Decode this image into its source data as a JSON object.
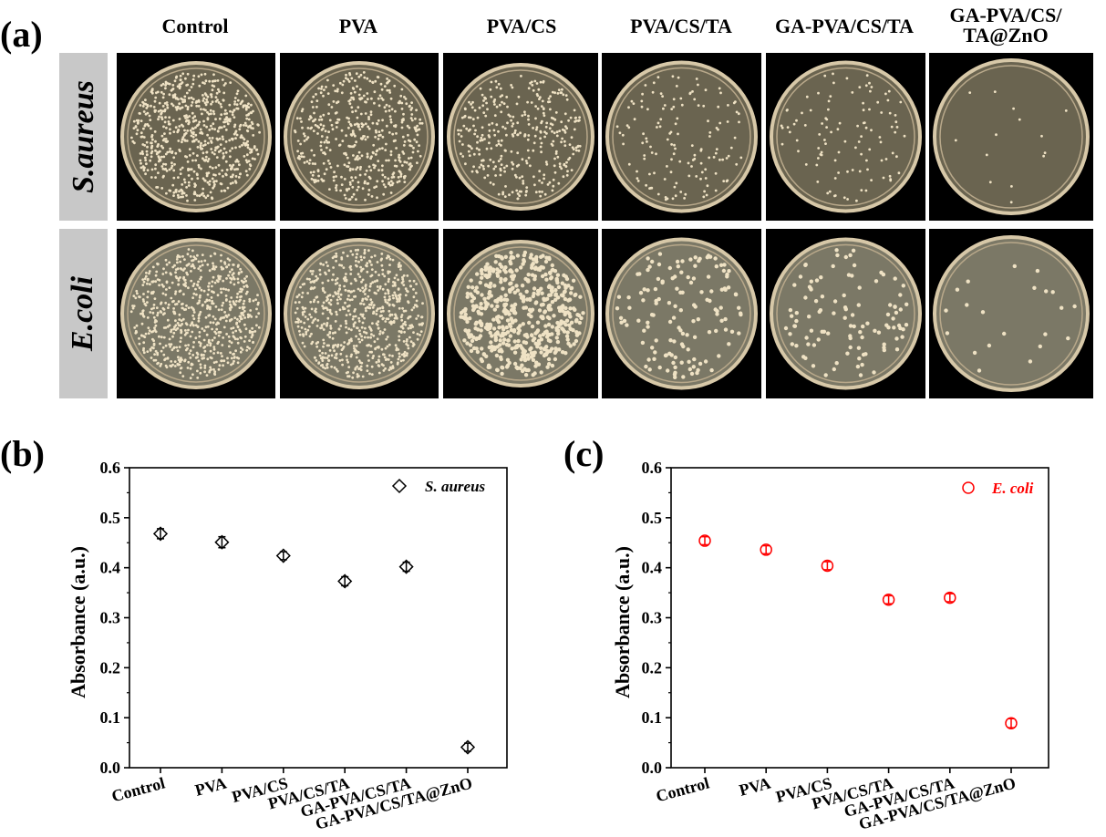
{
  "panel_a": {
    "letter": "(a)",
    "columns": [
      "Control",
      "PVA",
      "PVA/CS",
      "PVA/CS/TA",
      "GA-PVA/CS/TA",
      "GA-PVA/CS/\nTA@ZnO"
    ],
    "rows": [
      "S.aureus",
      "E.coli"
    ],
    "colony_density": [
      [
        1.0,
        0.7,
        0.5,
        0.2,
        0.15,
        0.02
      ],
      [
        1.0,
        1.0,
        0.8,
        0.2,
        0.15,
        0.03
      ]
    ]
  },
  "chart_data": [
    {
      "letter": "(b)",
      "type": "scatter",
      "categories": [
        "Control",
        "PVA",
        "PVA/CS",
        "PVA/CS/TA",
        "GA-PVA/CS/TA",
        "GA-PVA/CS/TA@ZnO"
      ],
      "series": [
        {
          "name": "S. aureus",
          "values": [
            0.468,
            0.451,
            0.424,
            0.373,
            0.402,
            0.041
          ],
          "errors": [
            0.01,
            0.011,
            0.008,
            0.009,
            0.009,
            0.008
          ],
          "marker": "diamond",
          "color": "#000000"
        }
      ],
      "ylabel": "Absorbance (a.u.)",
      "ylim": [
        0,
        0.6
      ],
      "yticks": [
        "0.0",
        "0.1",
        "0.2",
        "0.3",
        "0.4",
        "0.5",
        "0.6"
      ]
    },
    {
      "letter": "(c)",
      "type": "scatter",
      "categories": [
        "Control",
        "PVA",
        "PVA/CS",
        "PVA/CS/TA",
        "GA-PVA/CS/TA",
        "GA-PVA/CS/TA@ZnO"
      ],
      "series": [
        {
          "name": "E. coli",
          "values": [
            0.454,
            0.436,
            0.404,
            0.336,
            0.34,
            0.089
          ],
          "errors": [
            0.008,
            0.008,
            0.008,
            0.008,
            0.008,
            0.009
          ],
          "marker": "circle",
          "color": "#ff0000"
        }
      ],
      "ylabel": "Absorbance (a.u.)",
      "ylim": [
        0,
        0.6
      ],
      "yticks": [
        "0.0",
        "0.1",
        "0.2",
        "0.3",
        "0.4",
        "0.5",
        "0.6"
      ]
    }
  ]
}
